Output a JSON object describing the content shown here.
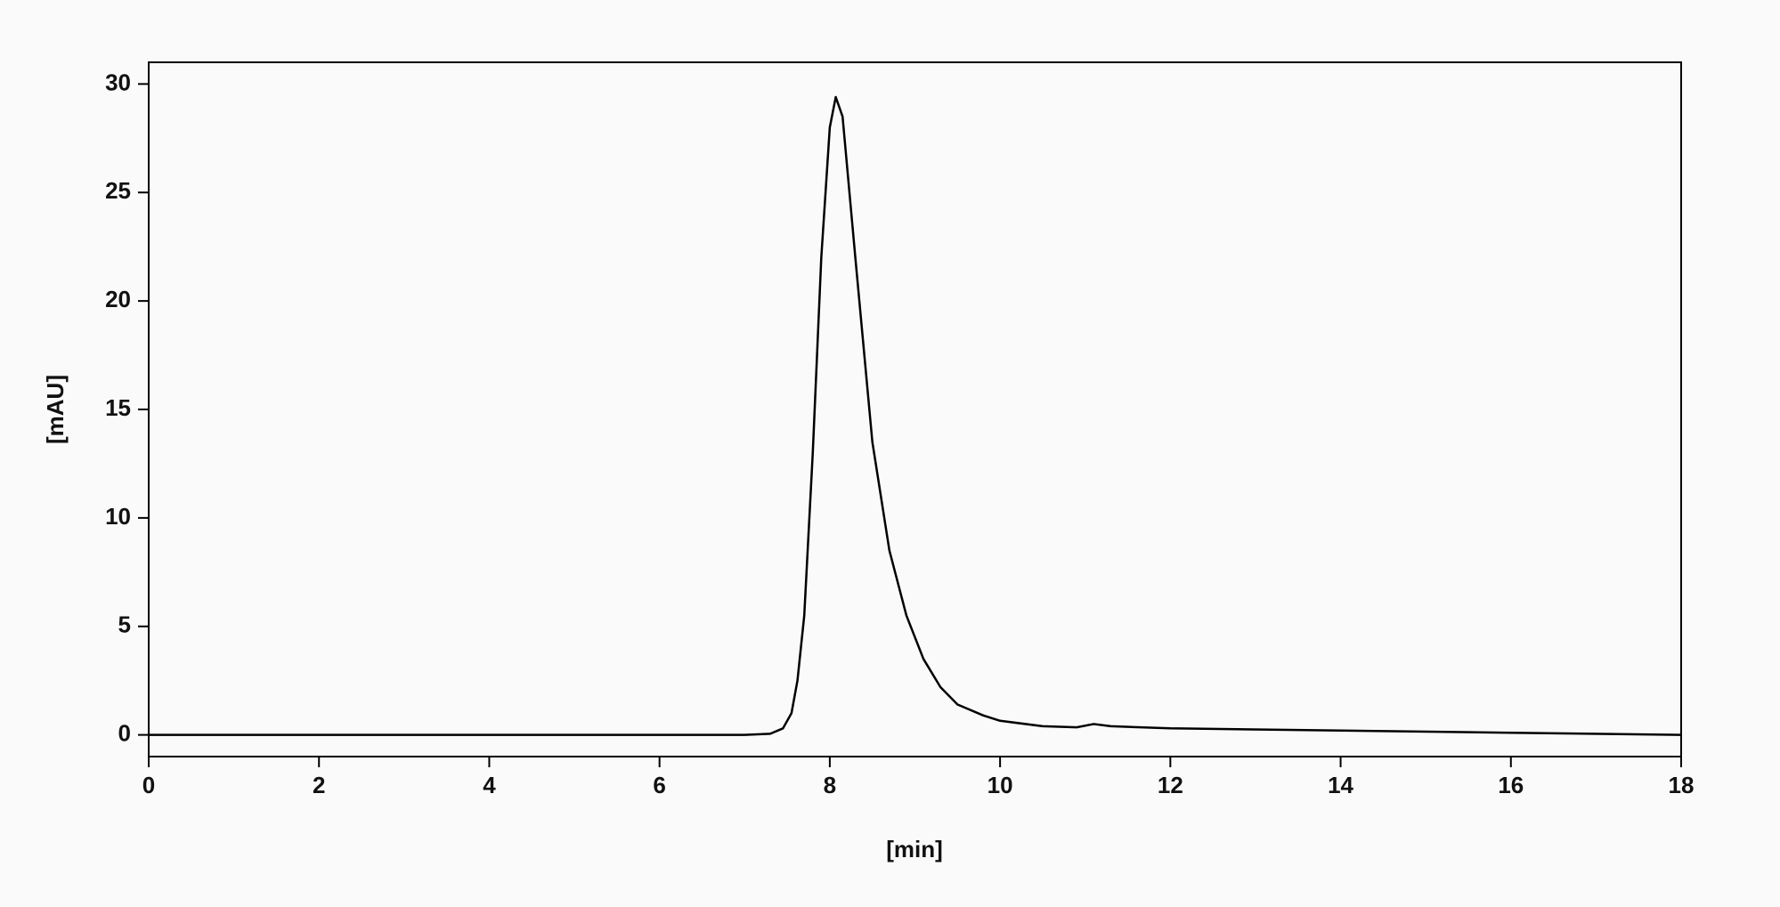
{
  "chart_data": {
    "type": "line",
    "xlabel": "[min]",
    "ylabel": "[mAU]",
    "x": [
      0,
      2,
      4,
      6,
      7,
      7.3,
      7.45,
      7.55,
      7.62,
      7.7,
      7.8,
      7.9,
      8.0,
      8.07,
      8.15,
      8.3,
      8.5,
      8.7,
      8.9,
      9.1,
      9.3,
      9.5,
      9.8,
      10.0,
      10.5,
      10.9,
      11.1,
      11.3,
      12,
      14,
      16,
      18
    ],
    "series": [
      {
        "color": "#000000",
        "values": [
          0,
          0,
          0,
          0,
          0,
          0.05,
          0.3,
          1.0,
          2.5,
          5.5,
          13,
          22,
          28,
          29.4,
          28.5,
          22,
          13.5,
          8.5,
          5.5,
          3.5,
          2.2,
          1.4,
          0.9,
          0.65,
          0.4,
          0.35,
          0.5,
          0.4,
          0.3,
          0.2,
          0.1,
          0
        ]
      }
    ],
    "xlim": [
      0,
      18
    ],
    "xticks": [
      0,
      2,
      4,
      6,
      8,
      10,
      12,
      14,
      16,
      18
    ],
    "ylim": [
      -1,
      31
    ],
    "yticks": [
      0,
      5,
      10,
      15,
      20,
      25,
      30
    ],
    "grid": false
  }
}
